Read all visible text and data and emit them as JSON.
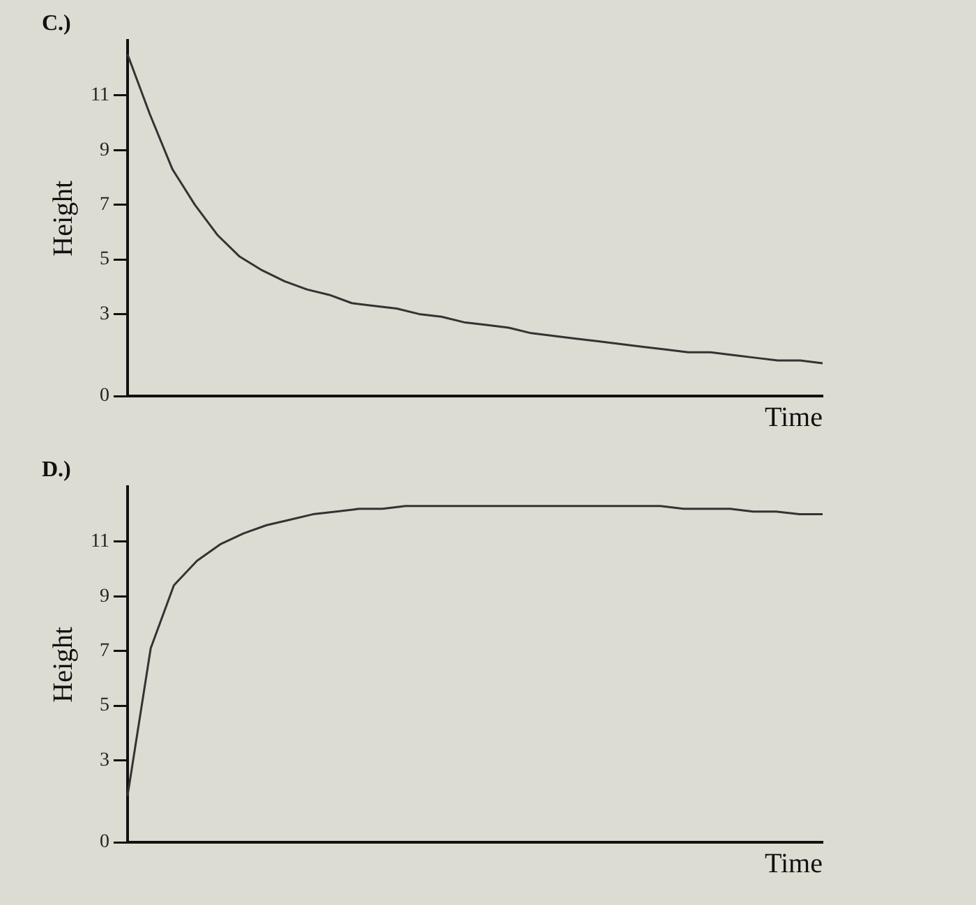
{
  "chart_data": [
    {
      "type": "line",
      "title": "C.)",
      "ylabel": "Height",
      "xlabel": "Time",
      "categories": [
        null,
        null,
        null,
        null,
        null,
        null,
        null,
        null,
        null,
        null,
        null,
        null,
        null,
        null,
        null,
        null,
        null,
        null,
        null,
        null,
        null,
        null,
        null,
        null,
        null,
        null,
        null,
        null,
        null,
        null,
        null,
        null
      ],
      "series": [
        {
          "color": "#333333",
          "values": [
            12.5,
            10.3,
            8.3,
            7.0,
            5.9,
            5.1,
            4.6,
            4.2,
            3.9,
            3.7,
            3.4,
            3.3,
            3.2,
            3.0,
            2.9,
            2.7,
            2.6,
            2.5,
            2.3,
            2.2,
            2.1,
            2.0,
            1.9,
            1.8,
            1.7,
            1.6,
            1.6,
            1.5,
            1.4,
            1.3,
            1.3,
            1.2
          ]
        }
      ],
      "ylim": [
        0,
        13
      ],
      "yticks": [
        0,
        3,
        5,
        7,
        9,
        11
      ],
      "grid": false,
      "legend": false,
      "tick_labels": "y",
      "marker": "none",
      "line_style": "solid"
    },
    {
      "type": "line",
      "title": "D.)",
      "ylabel": "Height",
      "xlabel": "Time",
      "categories": [
        null,
        null,
        null,
        null,
        null,
        null,
        null,
        null,
        null,
        null,
        null,
        null,
        null,
        null,
        null,
        null,
        null,
        null,
        null,
        null,
        null,
        null,
        null,
        null,
        null,
        null,
        null,
        null,
        null,
        null,
        null
      ],
      "series": [
        {
          "color": "#333333",
          "values": [
            1.7,
            7.1,
            9.4,
            10.3,
            10.9,
            11.3,
            11.6,
            11.8,
            12.0,
            12.1,
            12.2,
            12.2,
            12.3,
            12.3,
            12.3,
            12.3,
            12.3,
            12.3,
            12.3,
            12.3,
            12.3,
            12.3,
            12.3,
            12.3,
            12.2,
            12.2,
            12.2,
            12.1,
            12.1,
            12.0,
            12.0
          ]
        }
      ],
      "ylim": [
        0,
        13
      ],
      "yticks": [
        0,
        3,
        5,
        7,
        9,
        11
      ],
      "grid": false,
      "legend": false,
      "tick_labels": "y",
      "marker": "none",
      "line_style": "solid"
    }
  ]
}
